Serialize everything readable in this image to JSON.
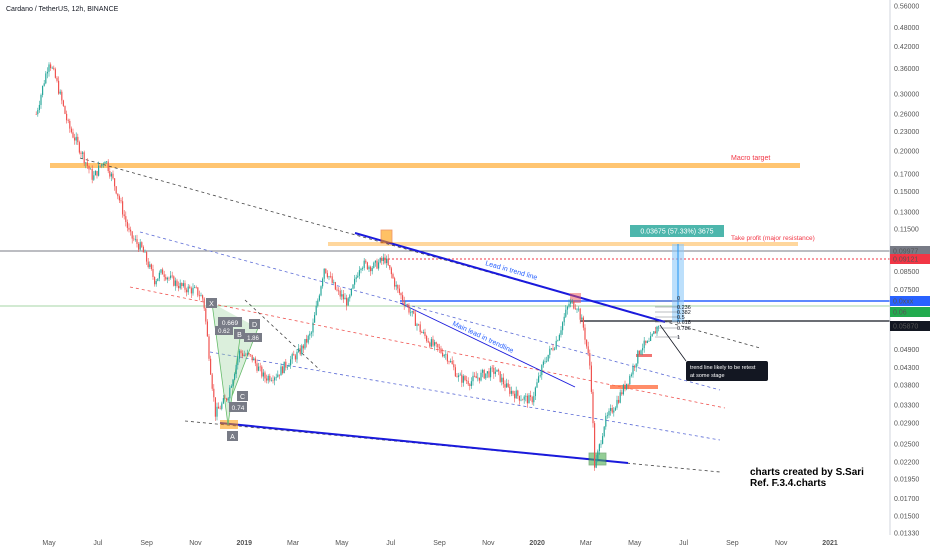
{
  "header": {
    "title": "Cardano / TetherUS, 12h, BINANCE"
  },
  "chart_data": {
    "type": "candlestick",
    "symbol": "Cardano / TetherUS",
    "interval": "12h",
    "exchange": "BINANCE",
    "y_scale": "log",
    "ylim": [
      0.0133,
      0.56
    ],
    "y_ticks": [
      0.56,
      0.48,
      0.42,
      0.36,
      0.3,
      0.26,
      0.23,
      0.2,
      0.17,
      0.15,
      0.13,
      0.115,
      0.1,
      0.085,
      0.075,
      0.065,
      0.0587,
      0.049,
      0.043,
      0.038,
      0.033,
      0.029,
      0.025,
      0.022,
      0.0195,
      0.017,
      0.015,
      0.0133
    ],
    "x_labels": [
      "May",
      "Jul",
      "Sep",
      "Nov",
      "2019",
      "Mar",
      "May",
      "Jul",
      "Sep",
      "Nov",
      "2020",
      "Mar",
      "May",
      "Jul",
      "Sep",
      "Nov",
      "2021"
    ],
    "price_path": [
      [
        "2018-04-15",
        0.26
      ],
      [
        "2018-05-01",
        0.38
      ],
      [
        "2018-05-10",
        0.33
      ],
      [
        "2018-05-25",
        0.24
      ],
      [
        "2018-06-10",
        0.2
      ],
      [
        "2018-06-25",
        0.165
      ],
      [
        "2018-07-10",
        0.19
      ],
      [
        "2018-07-25",
        0.15
      ],
      [
        "2018-08-10",
        0.11
      ],
      [
        "2018-08-25",
        0.1
      ],
      [
        "2018-09-10",
        0.08
      ],
      [
        "2018-09-20",
        0.085
      ],
      [
        "2018-10-01",
        0.08
      ],
      [
        "2018-10-15",
        0.076
      ],
      [
        "2018-11-01",
        0.074
      ],
      [
        "2018-11-10",
        0.07
      ],
      [
        "2018-11-20",
        0.04
      ],
      [
        "2018-11-25",
        0.031
      ],
      [
        "2018-12-10",
        0.035
      ],
      [
        "2018-12-25",
        0.048
      ],
      [
        "2019-01-10",
        0.046
      ],
      [
        "2019-01-25",
        0.04
      ],
      [
        "2019-02-10",
        0.041
      ],
      [
        "2019-02-25",
        0.045
      ],
      [
        "2019-03-10",
        0.048
      ],
      [
        "2019-03-25",
        0.055
      ],
      [
        "2019-04-10",
        0.088
      ],
      [
        "2019-04-25",
        0.074
      ],
      [
        "2019-05-10",
        0.068
      ],
      [
        "2019-05-25",
        0.09
      ],
      [
        "2019-06-10",
        0.088
      ],
      [
        "2019-06-25",
        0.093
      ],
      [
        "2019-07-10",
        0.075
      ],
      [
        "2019-07-25",
        0.065
      ],
      [
        "2019-08-10",
        0.055
      ],
      [
        "2019-08-25",
        0.05
      ],
      [
        "2019-09-10",
        0.047
      ],
      [
        "2019-09-25",
        0.04
      ],
      [
        "2019-10-10",
        0.039
      ],
      [
        "2019-10-25",
        0.041
      ],
      [
        "2019-11-10",
        0.042
      ],
      [
        "2019-11-25",
        0.037
      ],
      [
        "2019-12-10",
        0.035
      ],
      [
        "2019-12-25",
        0.034
      ],
      [
        "2020-01-10",
        0.045
      ],
      [
        "2020-01-25",
        0.052
      ],
      [
        "2020-02-10",
        0.068
      ],
      [
        "2020-02-20",
        0.067
      ],
      [
        "2020-02-28",
        0.057
      ],
      [
        "2020-03-08",
        0.042
      ],
      [
        "2020-03-13",
        0.021
      ],
      [
        "2020-03-25",
        0.029
      ],
      [
        "2020-04-10",
        0.034
      ],
      [
        "2020-04-25",
        0.04
      ],
      [
        "2020-05-10",
        0.05
      ],
      [
        "2020-05-20",
        0.051
      ],
      [
        "2020-06-01",
        0.0587
      ]
    ],
    "horizontal_levels": [
      {
        "label": "Macro target",
        "value": 0.175
      },
      {
        "label": "Take profit (major resistance)",
        "value": 0.0984
      },
      {
        "label": "",
        "value": 0.0912
      },
      {
        "label": "",
        "value": 0.0587
      }
    ],
    "price_labels": [
      {
        "text": "0.09977",
        "color": "#787b86"
      },
      {
        "text": "0.09121",
        "color": "#f23645"
      },
      {
        "text": "0.0xxx",
        "color": "#2962ff"
      },
      {
        "text": "0.06",
        "color": "#22ab4e"
      },
      {
        "text": "0.05870",
        "color": "#131722"
      }
    ],
    "measure_label": "0.03675 (57.33%) 3675",
    "fib_levels": [
      "0",
      "0.236",
      "0.382",
      "0.5",
      "0.618",
      "0.786",
      "1"
    ],
    "pattern_points": [
      {
        "label": "X"
      },
      {
        "label": "A"
      },
      {
        "label": "B"
      },
      {
        "label": "C"
      },
      {
        "label": "D"
      }
    ],
    "pattern_ratios": [
      "0.669",
      "0.62",
      "1.86",
      "0.74"
    ],
    "annotations": {
      "macro_target": "Macro target",
      "take_profit": "Take profit (major resistance)",
      "lead_trend": "Lead in trend line",
      "main_lead": "Main lead in trendline",
      "callout": [
        "trend line likely to be retest",
        "at some stage"
      ],
      "credit_1": "charts created by S.Sari",
      "credit_2": "Ref. F.3.4.charts"
    },
    "colors": {
      "up": "#26a69a",
      "down": "#ef5350",
      "macro_band": "#ffb74d",
      "trendline_blue": "#1a1adc",
      "dashed_blue": "#5b6bd6",
      "dashed_red": "#ef5350",
      "measure": "#2196f3",
      "green_box": "#4caf50"
    }
  }
}
